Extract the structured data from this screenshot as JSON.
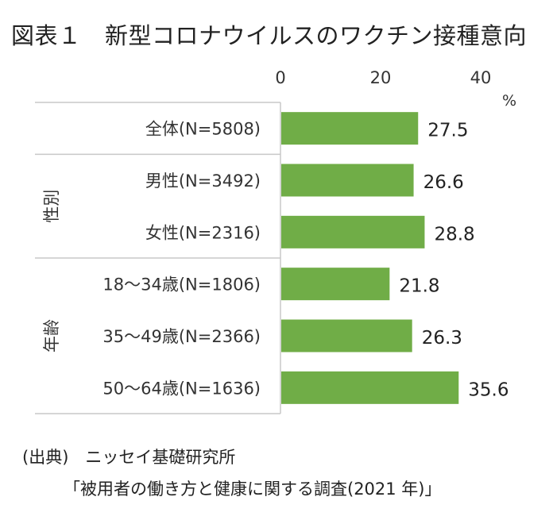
{
  "title": "図表１　新型コロナウイルスのワクチン接種意向",
  "chart_data": {
    "type": "bar",
    "orientation": "horizontal",
    "unit": "%",
    "xlim": [
      0,
      40
    ],
    "xticks": [
      "0",
      "20",
      "40"
    ],
    "categories": [
      "全体(N=5808)",
      "男性(N=3492)",
      "女性(N=2316)",
      "18～34歳(N=1806)",
      "35～49歳(N=2366)",
      "50～64歳(N=1636)"
    ],
    "values": [
      27.5,
      26.6,
      28.8,
      21.8,
      26.3,
      35.6
    ],
    "value_labels": [
      "27.5",
      "26.6",
      "28.8",
      "21.8",
      "26.3",
      "35.6"
    ],
    "groups": [
      {
        "label": "性別",
        "start": 1,
        "end": 2
      },
      {
        "label": "年齢",
        "start": 3,
        "end": 5
      }
    ],
    "bar_color": "#70ad47",
    "grid": false
  },
  "source": {
    "line1": "(出典)　ニッセイ基礎研究所",
    "line2": "「被用者の働き方と健康に関する調査(2021 年)」"
  }
}
